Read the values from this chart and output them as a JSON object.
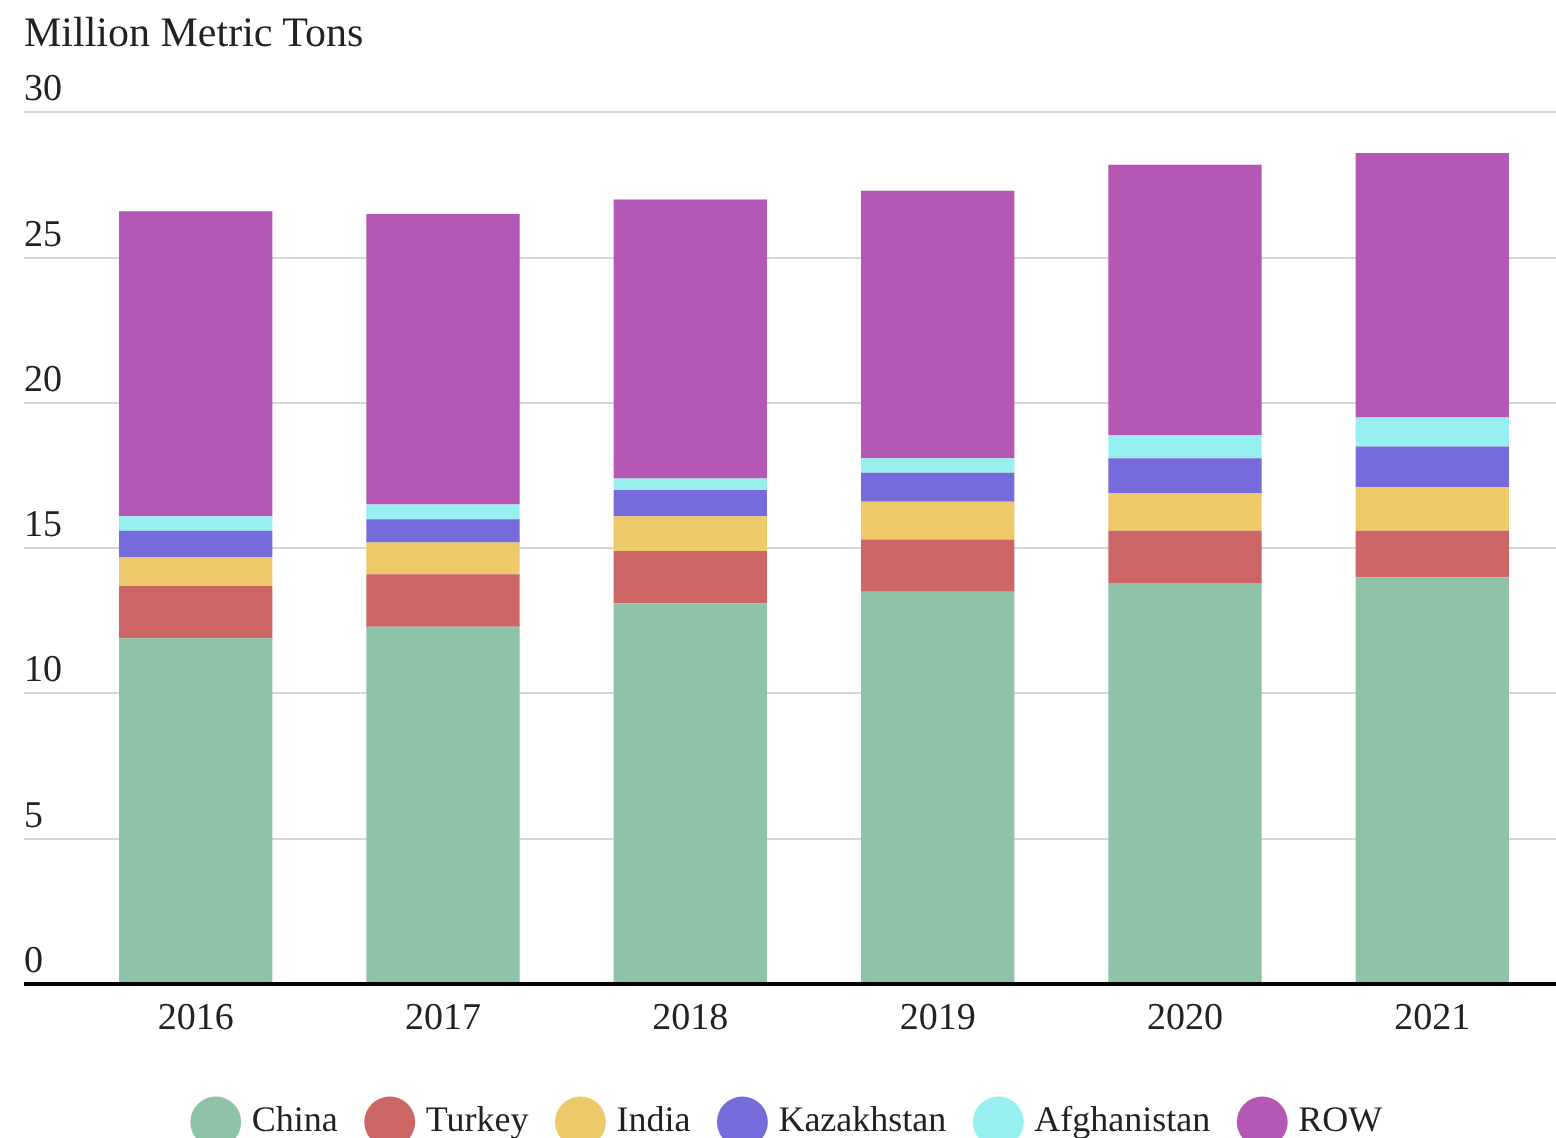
{
  "chart_data": {
    "type": "bar",
    "ylabel": "Million Metric Tons",
    "categories": [
      "2016",
      "2017",
      "2018",
      "2019",
      "2020",
      "2021"
    ],
    "series": [
      {
        "name": "China",
        "color": "#8fc3a8",
        "values": [
          11.9,
          12.3,
          13.1,
          13.5,
          13.8,
          14.0
        ]
      },
      {
        "name": "Turkey",
        "color": "#cc6666",
        "values": [
          1.8,
          1.8,
          1.8,
          1.8,
          1.8,
          1.6
        ]
      },
      {
        "name": "India",
        "color": "#eec96a",
        "values": [
          1.0,
          1.1,
          1.2,
          1.3,
          1.3,
          1.5
        ]
      },
      {
        "name": "Kazakhstan",
        "color": "#766bdb",
        "values": [
          0.9,
          0.8,
          0.9,
          1.0,
          1.2,
          1.4
        ]
      },
      {
        "name": "Afghanistan",
        "color": "#97f0ef",
        "values": [
          0.5,
          0.5,
          0.4,
          0.5,
          0.8,
          1.0
        ]
      },
      {
        "name": "ROW",
        "color": "#b557b5",
        "values": [
          10.5,
          10.0,
          9.6,
          9.2,
          9.3,
          9.1
        ]
      }
    ],
    "stacked": true,
    "ylim": [
      0,
      30
    ],
    "yticks": [
      0,
      5,
      10,
      15,
      20,
      25,
      30
    ],
    "grid": "y",
    "legend": "bottom"
  }
}
